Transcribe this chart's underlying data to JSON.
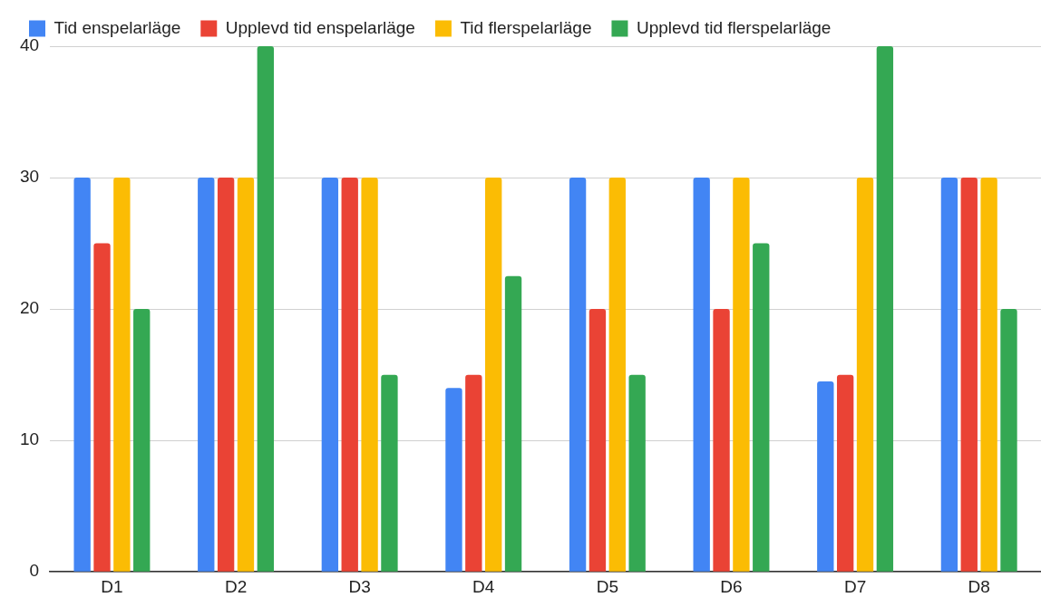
{
  "chart_data": {
    "type": "bar",
    "categories": [
      "D1",
      "D2",
      "D3",
      "D4",
      "D5",
      "D6",
      "D7",
      "D8"
    ],
    "series": [
      {
        "name": "Tid enspelarläge",
        "color": "#4285f4",
        "values": [
          30,
          30,
          30,
          14,
          30,
          30,
          14.5,
          30
        ]
      },
      {
        "name": "Upplevd tid enspelarläge",
        "color": "#ea4335",
        "values": [
          25,
          30,
          30,
          15,
          20,
          20,
          15,
          30
        ]
      },
      {
        "name": "Tid flerspelarläge",
        "color": "#fbbc04",
        "values": [
          30,
          30,
          30,
          30,
          30,
          30,
          30,
          30
        ]
      },
      {
        "name": "Upplevd tid flerspelarläge",
        "color": "#34a853",
        "values": [
          20,
          40,
          15,
          22.5,
          15,
          25,
          40,
          20
        ]
      }
    ],
    "ylim": [
      0,
      40
    ],
    "yticks": [
      0,
      10,
      20,
      30,
      40
    ],
    "grid": "y",
    "legend": "top"
  }
}
